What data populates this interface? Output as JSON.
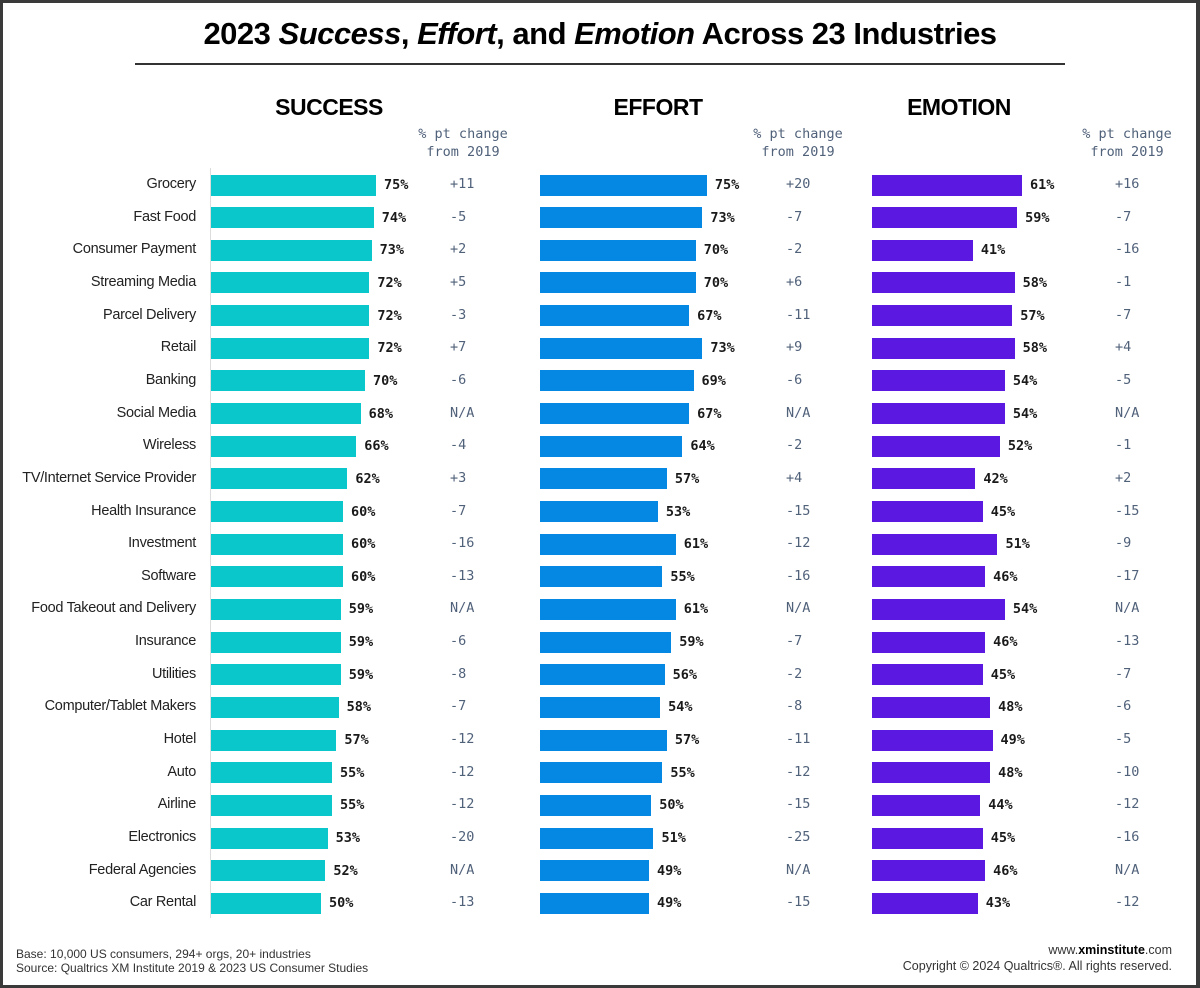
{
  "chart_data": {
    "type": "bar",
    "orientation": "horizontal",
    "title": "2023 Success, Effort, and Emotion Across 23 Industries",
    "title_parts": [
      {
        "text": "2023 ",
        "italic": false
      },
      {
        "text": "Success",
        "italic": true
      },
      {
        "text": ", ",
        "italic": false
      },
      {
        "text": "Effort",
        "italic": true
      },
      {
        "text": ", and ",
        "italic": false
      },
      {
        "text": "Emotion",
        "italic": true
      },
      {
        "text": " Across 23 Industries",
        "italic": false
      }
    ],
    "change_header": [
      "% pt change",
      "from 2019"
    ],
    "categories": [
      "Grocery",
      "Fast Food",
      "Consumer Payment",
      "Streaming Media",
      "Parcel Delivery",
      "Retail",
      "Banking",
      "Social Media",
      "Wireless",
      "TV/Internet Service Provider",
      "Health Insurance",
      "Investment",
      "Software",
      "Food Takeout and Delivery",
      "Insurance",
      "Utilities",
      "Computer/Tablet Makers",
      "Hotel",
      "Auto",
      "Airline",
      "Electronics",
      "Federal Agencies",
      "Car Rental"
    ],
    "series": [
      {
        "name": "SUCCESS",
        "color": "#0ac7cc",
        "values": [
          75,
          74,
          73,
          72,
          72,
          72,
          70,
          68,
          66,
          62,
          60,
          60,
          60,
          59,
          59,
          59,
          58,
          57,
          55,
          55,
          53,
          52,
          50
        ],
        "change_from_2019": [
          "+11",
          "-5",
          "+2",
          "+5",
          "-3",
          "+7",
          "-6",
          "N/A",
          "-4",
          "+3",
          "-7",
          "-16",
          "-13",
          "N/A",
          "-6",
          "-8",
          "-7",
          "-12",
          "-12",
          "-12",
          "-20",
          "N/A",
          "-13"
        ]
      },
      {
        "name": "EFFORT",
        "color": "#0588e4",
        "values": [
          75,
          73,
          70,
          70,
          67,
          73,
          69,
          67,
          64,
          57,
          53,
          61,
          55,
          61,
          59,
          56,
          54,
          57,
          55,
          50,
          51,
          49,
          49
        ],
        "change_from_2019": [
          "+20",
          "-7",
          "-2",
          "+6",
          "-11",
          "+9",
          "-6",
          "N/A",
          "-2",
          "+4",
          "-15",
          "-12",
          "-16",
          "N/A",
          "-7",
          "-2",
          "-8",
          "-11",
          "-12",
          "-15",
          "-25",
          "N/A",
          "-15"
        ]
      },
      {
        "name": "EMOTION",
        "color": "#5b18e0",
        "values": [
          61,
          59,
          41,
          58,
          57,
          58,
          54,
          54,
          52,
          42,
          45,
          51,
          46,
          54,
          46,
          45,
          48,
          49,
          48,
          44,
          45,
          46,
          43
        ],
        "change_from_2019": [
          "+16",
          "-7",
          "-16",
          "-1",
          "-7",
          "+4",
          "-5",
          "N/A",
          "-1",
          "+2",
          "-15",
          "-9",
          "-17",
          "N/A",
          "-13",
          "-7",
          "-6",
          "-5",
          "-10",
          "-12",
          "-16",
          "N/A",
          "-12"
        ]
      }
    ],
    "value_suffix": "%",
    "xlabel": "",
    "ylabel": "",
    "grid": false,
    "legend": "none"
  },
  "footer": {
    "base": "Base: 10,000 US consumers, 294+ orgs, 20+ industries",
    "source": "Source: Qualtrics XM Institute 2019 & 2023 US Consumer Studies",
    "url_prefix": "www.",
    "url_bold": "xminstitute",
    "url_suffix": ".com",
    "copyright": "Copyright © 2024 Qualtrics®. All rights reserved."
  }
}
